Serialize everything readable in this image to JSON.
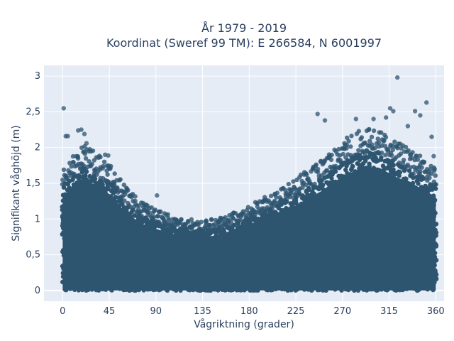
{
  "chart_data": {
    "type": "scatter",
    "title_line1": "År 1979 - 2019",
    "title_line2": "Koordinat (Sweref 99 TM): E 266584, N 6001997",
    "xlabel": "Vågriktning (grader)",
    "ylabel": "Signifikant våghöjd (m)",
    "xlim": [
      -18,
      368
    ],
    "ylim": [
      -0.15,
      3.15
    ],
    "xticks": [
      0,
      45,
      90,
      135,
      180,
      225,
      270,
      315,
      360
    ],
    "xtick_labels": [
      "0",
      "45",
      "90",
      "135",
      "180",
      "225",
      "270",
      "315",
      "360"
    ],
    "yticks": [
      0,
      0.5,
      1,
      1.5,
      2,
      2.5,
      3
    ],
    "ytick_labels": [
      "0",
      "0,5",
      "1",
      "1,5",
      "2",
      "2,5",
      "3"
    ],
    "grid": true,
    "legend": "none",
    "marker_color": "#2e5570",
    "plot_background": "#e5ecf6",
    "envelope_description": "dense cloud from 0 up to an upper envelope varying with direction",
    "envelope": [
      {
        "x": 0,
        "y": 1.6
      },
      {
        "x": 10,
        "y": 1.75
      },
      {
        "x": 20,
        "y": 1.9
      },
      {
        "x": 30,
        "y": 1.8
      },
      {
        "x": 45,
        "y": 1.65
      },
      {
        "x": 60,
        "y": 1.35
      },
      {
        "x": 75,
        "y": 1.15
      },
      {
        "x": 90,
        "y": 1.05
      },
      {
        "x": 110,
        "y": 0.95
      },
      {
        "x": 135,
        "y": 0.9
      },
      {
        "x": 160,
        "y": 0.98
      },
      {
        "x": 180,
        "y": 1.1
      },
      {
        "x": 200,
        "y": 1.25
      },
      {
        "x": 225,
        "y": 1.45
      },
      {
        "x": 250,
        "y": 1.7
      },
      {
        "x": 270,
        "y": 1.95
      },
      {
        "x": 290,
        "y": 2.1
      },
      {
        "x": 305,
        "y": 2.1
      },
      {
        "x": 320,
        "y": 1.95
      },
      {
        "x": 340,
        "y": 1.8
      },
      {
        "x": 360,
        "y": 1.6
      }
    ],
    "outliers": [
      {
        "x": 1,
        "y": 2.55
      },
      {
        "x": 3,
        "y": 2.16
      },
      {
        "x": 5,
        "y": 2.16
      },
      {
        "x": 15,
        "y": 2.24
      },
      {
        "x": 18,
        "y": 2.25
      },
      {
        "x": 21,
        "y": 2.19
      },
      {
        "x": 23,
        "y": 2.06
      },
      {
        "x": 41,
        "y": 1.9
      },
      {
        "x": 44,
        "y": 1.89
      },
      {
        "x": 91,
        "y": 1.33
      },
      {
        "x": 246,
        "y": 2.47
      },
      {
        "x": 253,
        "y": 2.38
      },
      {
        "x": 283,
        "y": 2.4
      },
      {
        "x": 300,
        "y": 2.4
      },
      {
        "x": 312,
        "y": 2.42
      },
      {
        "x": 323,
        "y": 2.98
      },
      {
        "x": 316,
        "y": 2.55
      },
      {
        "x": 319,
        "y": 2.51
      },
      {
        "x": 333,
        "y": 2.3
      },
      {
        "x": 340,
        "y": 2.51
      },
      {
        "x": 345,
        "y": 2.45
      },
      {
        "x": 351,
        "y": 2.63
      },
      {
        "x": 356,
        "y": 2.15
      },
      {
        "x": 358,
        "y": 1.88
      }
    ]
  }
}
